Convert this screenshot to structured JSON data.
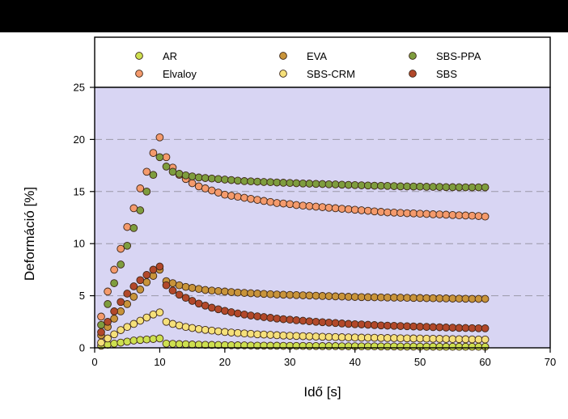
{
  "chart_data": {
    "type": "scatter",
    "xlabel": "Idő [s]",
    "ylabel": "Deformáció [%]",
    "xlim": [
      0,
      70
    ],
    "ylim": [
      0,
      25
    ],
    "xticks": [
      0,
      10,
      20,
      30,
      40,
      50,
      60,
      70
    ],
    "yticks": [
      0,
      5,
      10,
      15,
      20,
      25
    ],
    "grid": "horizontal dashed",
    "legend_position": "top",
    "plot_background": "#d8d5f3",
    "series": [
      {
        "name": "AR",
        "color": "#cde050",
        "x": [
          1,
          2,
          3,
          4,
          5,
          6,
          7,
          8,
          9,
          10,
          11,
          12,
          13,
          14,
          15,
          16,
          17,
          18,
          19,
          20,
          21,
          22,
          23,
          24,
          25,
          26,
          27,
          28,
          29,
          30,
          31,
          32,
          33,
          34,
          35,
          36,
          37,
          38,
          39,
          40,
          41,
          42,
          43,
          44,
          45,
          46,
          47,
          48,
          49,
          50,
          51,
          52,
          53,
          54,
          55,
          56,
          57,
          58,
          59,
          60
        ],
        "y": [
          0.2,
          0.3,
          0.4,
          0.5,
          0.6,
          0.7,
          0.75,
          0.8,
          0.85,
          0.9,
          0.4,
          0.38,
          0.36,
          0.34,
          0.32,
          0.3,
          0.29,
          0.28,
          0.27,
          0.26,
          0.25,
          0.24,
          0.23,
          0.22,
          0.21,
          0.21,
          0.2,
          0.2,
          0.19,
          0.19,
          0.18,
          0.18,
          0.17,
          0.17,
          0.16,
          0.16,
          0.16,
          0.15,
          0.15,
          0.15,
          0.14,
          0.14,
          0.14,
          0.13,
          0.13,
          0.13,
          0.12,
          0.12,
          0.12,
          0.11,
          0.11,
          0.11,
          0.1,
          0.1,
          0.1,
          0.1,
          0.1,
          0.1,
          0.1,
          0.1
        ]
      },
      {
        "name": "Elvaloy",
        "color": "#f49a6c",
        "x": [
          1,
          2,
          3,
          4,
          5,
          6,
          7,
          8,
          9,
          10,
          11,
          12,
          13,
          14,
          15,
          16,
          17,
          18,
          19,
          20,
          21,
          22,
          23,
          24,
          25,
          26,
          27,
          28,
          29,
          30,
          31,
          32,
          33,
          34,
          35,
          36,
          37,
          38,
          39,
          40,
          41,
          42,
          43,
          44,
          45,
          46,
          47,
          48,
          49,
          50,
          51,
          52,
          53,
          54,
          55,
          56,
          57,
          58,
          59,
          60
        ],
        "y": [
          3.0,
          5.4,
          7.5,
          9.5,
          11.6,
          13.4,
          15.3,
          16.9,
          18.7,
          20.2,
          18.3,
          17.3,
          16.6,
          16.2,
          15.8,
          15.5,
          15.3,
          15.1,
          14.9,
          14.7,
          14.6,
          14.5,
          14.4,
          14.3,
          14.2,
          14.1,
          14.0,
          13.9,
          13.85,
          13.8,
          13.7,
          13.65,
          13.6,
          13.55,
          13.5,
          13.45,
          13.4,
          13.35,
          13.3,
          13.25,
          13.2,
          13.15,
          13.1,
          13.05,
          13.0,
          12.98,
          12.95,
          12.92,
          12.9,
          12.87,
          12.85,
          12.82,
          12.8,
          12.78,
          12.75,
          12.72,
          12.7,
          12.68,
          12.65,
          12.6
        ]
      },
      {
        "name": "EVA",
        "color": "#c8943a",
        "x": [
          1,
          2,
          3,
          4,
          5,
          6,
          7,
          8,
          9,
          10,
          11,
          12,
          13,
          14,
          15,
          16,
          17,
          18,
          19,
          20,
          21,
          22,
          23,
          24,
          25,
          26,
          27,
          28,
          29,
          30,
          31,
          32,
          33,
          34,
          35,
          36,
          37,
          38,
          39,
          40,
          41,
          42,
          43,
          44,
          45,
          46,
          47,
          48,
          49,
          50,
          51,
          52,
          53,
          54,
          55,
          56,
          57,
          58,
          59,
          60
        ],
        "y": [
          1.2,
          2.0,
          2.8,
          3.5,
          4.2,
          4.9,
          5.6,
          6.3,
          6.9,
          7.5,
          6.4,
          6.2,
          6.0,
          5.85,
          5.75,
          5.65,
          5.55,
          5.5,
          5.45,
          5.4,
          5.35,
          5.3,
          5.27,
          5.24,
          5.21,
          5.18,
          5.15,
          5.12,
          5.1,
          5.08,
          5.06,
          5.04,
          5.02,
          5.0,
          4.98,
          4.96,
          4.94,
          4.92,
          4.9,
          4.88,
          4.87,
          4.86,
          4.85,
          4.84,
          4.83,
          4.82,
          4.81,
          4.8,
          4.79,
          4.78,
          4.77,
          4.76,
          4.75,
          4.74,
          4.73,
          4.72,
          4.71,
          4.7,
          4.7,
          4.7
        ]
      },
      {
        "name": "SBS-CRM",
        "color": "#f5e07a",
        "x": [
          1,
          2,
          3,
          4,
          5,
          6,
          7,
          8,
          9,
          10,
          11,
          12,
          13,
          14,
          15,
          16,
          17,
          18,
          19,
          20,
          21,
          22,
          23,
          24,
          25,
          26,
          27,
          28,
          29,
          30,
          31,
          32,
          33,
          34,
          35,
          36,
          37,
          38,
          39,
          40,
          41,
          42,
          43,
          44,
          45,
          46,
          47,
          48,
          49,
          50,
          51,
          52,
          53,
          54,
          55,
          56,
          57,
          58,
          59,
          60
        ],
        "y": [
          0.5,
          0.9,
          1.3,
          1.7,
          2.0,
          2.3,
          2.6,
          2.9,
          3.2,
          3.4,
          2.5,
          2.3,
          2.15,
          2.0,
          1.9,
          1.8,
          1.72,
          1.65,
          1.58,
          1.52,
          1.47,
          1.42,
          1.38,
          1.34,
          1.3,
          1.27,
          1.24,
          1.21,
          1.18,
          1.16,
          1.14,
          1.12,
          1.1,
          1.08,
          1.06,
          1.04,
          1.03,
          1.02,
          1.0,
          0.99,
          0.98,
          0.97,
          0.96,
          0.95,
          0.94,
          0.93,
          0.92,
          0.91,
          0.9,
          0.89,
          0.88,
          0.87,
          0.86,
          0.85,
          0.84,
          0.83,
          0.82,
          0.81,
          0.8,
          0.8
        ]
      },
      {
        "name": "SBS-PPA",
        "color": "#7e9d3e",
        "x": [
          1,
          2,
          3,
          4,
          5,
          6,
          7,
          8,
          9,
          10,
          11,
          12,
          13,
          14,
          15,
          16,
          17,
          18,
          19,
          20,
          21,
          22,
          23,
          24,
          25,
          26,
          27,
          28,
          29,
          30,
          31,
          32,
          33,
          34,
          35,
          36,
          37,
          38,
          39,
          40,
          41,
          42,
          43,
          44,
          45,
          46,
          47,
          48,
          49,
          50,
          51,
          52,
          53,
          54,
          55,
          56,
          57,
          58,
          59,
          60
        ],
        "y": [
          2.2,
          4.2,
          6.2,
          8.0,
          9.8,
          11.5,
          13.2,
          15.0,
          16.6,
          18.3,
          17.4,
          16.9,
          16.7,
          16.55,
          16.45,
          16.35,
          16.3,
          16.25,
          16.2,
          16.15,
          16.1,
          16.05,
          16.0,
          15.98,
          15.95,
          15.92,
          15.9,
          15.87,
          15.85,
          15.82,
          15.8,
          15.78,
          15.76,
          15.74,
          15.72,
          15.7,
          15.68,
          15.66,
          15.64,
          15.62,
          15.6,
          15.58,
          15.56,
          15.55,
          15.54,
          15.52,
          15.5,
          15.49,
          15.48,
          15.47,
          15.46,
          15.45,
          15.44,
          15.43,
          15.42,
          15.41,
          15.4,
          15.4,
          15.4,
          15.4
        ]
      },
      {
        "name": "SBS",
        "color": "#b2482a",
        "x": [
          1,
          2,
          3,
          4,
          5,
          6,
          7,
          8,
          9,
          10,
          11,
          12,
          13,
          14,
          15,
          16,
          17,
          18,
          19,
          20,
          21,
          22,
          23,
          24,
          25,
          26,
          27,
          28,
          29,
          30,
          31,
          32,
          33,
          34,
          35,
          36,
          37,
          38,
          39,
          40,
          41,
          42,
          43,
          44,
          45,
          46,
          47,
          48,
          49,
          50,
          51,
          52,
          53,
          54,
          55,
          56,
          57,
          58,
          59,
          60
        ],
        "y": [
          1.5,
          2.5,
          3.5,
          4.4,
          5.2,
          5.9,
          6.5,
          7.0,
          7.5,
          7.8,
          6.0,
          5.5,
          5.1,
          4.8,
          4.5,
          4.25,
          4.05,
          3.85,
          3.7,
          3.55,
          3.42,
          3.3,
          3.2,
          3.1,
          3.02,
          2.95,
          2.88,
          2.81,
          2.75,
          2.7,
          2.65,
          2.6,
          2.55,
          2.5,
          2.46,
          2.42,
          2.38,
          2.34,
          2.3,
          2.27,
          2.24,
          2.21,
          2.18,
          2.15,
          2.13,
          2.11,
          2.09,
          2.07,
          2.05,
          2.03,
          2.01,
          1.99,
          1.97,
          1.95,
          1.93,
          1.91,
          1.9,
          1.89,
          1.88,
          1.87
        ]
      }
    ],
    "legend_order": [
      "AR",
      "EVA",
      "SBS-PPA",
      "Elvaloy",
      "SBS-CRM",
      "SBS"
    ]
  }
}
